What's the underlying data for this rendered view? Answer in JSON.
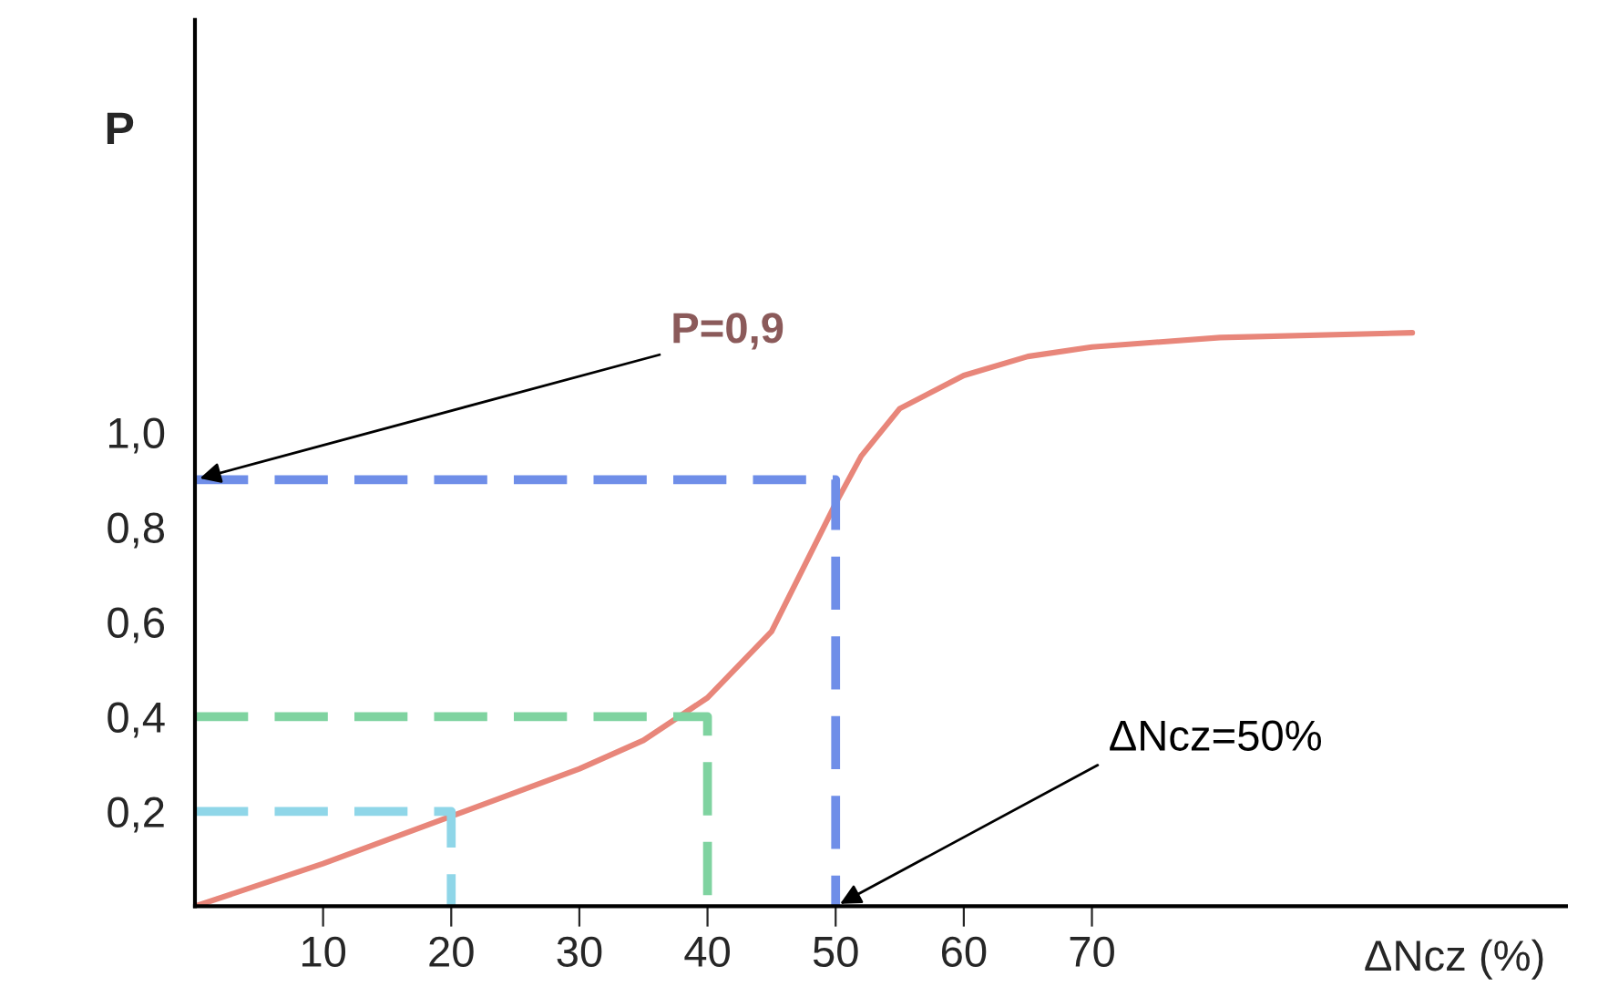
{
  "chart_data": {
    "type": "line",
    "xlabel": "ΔNcz (%)",
    "ylabel": "P",
    "xlim": [
      0,
      107
    ],
    "ylim": [
      0,
      1.87
    ],
    "xticks": [
      10,
      20,
      30,
      40,
      50,
      60,
      70
    ],
    "yticks": [
      {
        "value": 0.2,
        "label": "0,2"
      },
      {
        "value": 0.4,
        "label": "0,4"
      },
      {
        "value": 0.6,
        "label": "0,6"
      },
      {
        "value": 0.8,
        "label": "0,8"
      },
      {
        "value": 1.0,
        "label": "1,0"
      }
    ],
    "grid": false,
    "legend": false,
    "series": [
      {
        "color": "#e8867a",
        "line_style": "solid",
        "x": [
          0,
          10,
          20,
          30,
          35,
          40,
          45,
          50,
          52,
          55,
          60,
          65,
          70,
          80,
          95
        ],
        "values": [
          0,
          0.09,
          0.19,
          0.29,
          0.35,
          0.44,
          0.58,
          0.85,
          0.95,
          1.05,
          1.12,
          1.16,
          1.18,
          1.2,
          1.21
        ]
      },
      {
        "color": "#6f8ee8",
        "line_style": "dashed",
        "x": [
          0,
          50,
          50
        ],
        "values": [
          0.9,
          0.9,
          0
        ]
      },
      {
        "color": "#7fd3a0",
        "line_style": "dashed",
        "x": [
          0,
          40,
          40
        ],
        "values": [
          0.4,
          0.4,
          0
        ]
      },
      {
        "color": "#8fd6e8",
        "line_style": "dashed",
        "x": [
          0,
          20,
          20
        ],
        "values": [
          0.2,
          0.2,
          0
        ]
      }
    ],
    "annotations": [
      {
        "text": "P=0,9",
        "x": 0,
        "y": 0.9
      },
      {
        "text": "ΔNcz=50%",
        "x": 50,
        "y": 0
      }
    ]
  }
}
